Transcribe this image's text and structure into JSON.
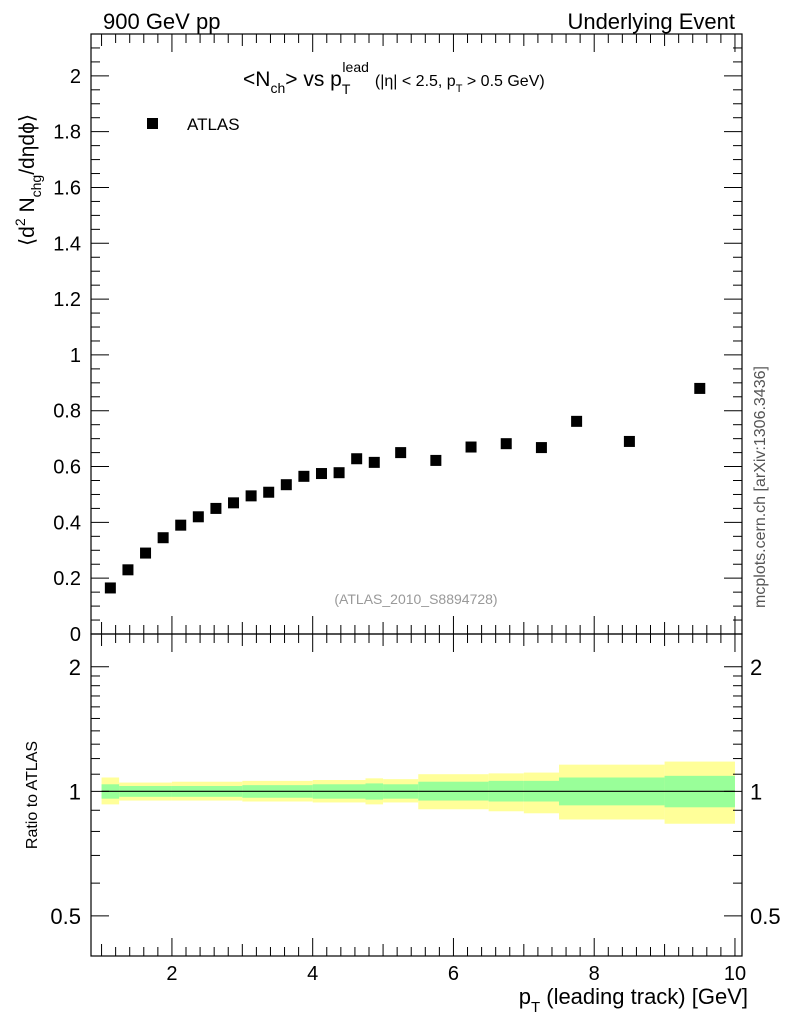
{
  "header": {
    "left": "900 GeV pp",
    "right": "Underlying Event"
  },
  "side_label": "mcplots.cern.ch [arXiv:1306.3436]",
  "colors": {
    "band_outer": "#ffff99",
    "band_inner": "#99ff99",
    "marker": "#000000",
    "analysis_label": "#999999"
  },
  "chart_data": {
    "type": "scatter",
    "title": {
      "obs_open": "<N",
      "obs_sub": "ch",
      "obs_close": "> vs p",
      "pt_sub": "T",
      "pt_sup": "lead",
      "cut_open": "(|η| < 2.5, p",
      "cut_sub": "T",
      "cut_close": " > 0.5 GeV)"
    },
    "xlabel": {
      "main": "p",
      "sub": "T",
      "rest": " (leading track) [GeV]"
    },
    "ylabel": {
      "open": "⟨d",
      "sup": "2",
      "mid": " N",
      "sub": "chg",
      "close": "/dηdϕ⟩"
    },
    "analysis_label": "(ATLAS_2010_S8894728)",
    "xlim": [
      0.85,
      10.1
    ],
    "ylim": [
      0,
      2.15
    ],
    "xticks": [
      2,
      4,
      6,
      8,
      10
    ],
    "yticks": [
      0,
      0.2,
      0.4,
      0.6,
      0.8,
      1,
      1.2,
      1.4,
      1.6,
      1.8,
      2
    ],
    "ytick_labels": [
      "0",
      "0.2",
      "0.4",
      "0.6",
      "0.8",
      "1",
      "1.2",
      "1.4",
      "1.6",
      "1.8",
      "2"
    ],
    "series": [
      {
        "name": "ATLAS",
        "marker": "square",
        "x": [
          1.125,
          1.375,
          1.625,
          1.875,
          2.125,
          2.375,
          2.625,
          2.875,
          3.125,
          3.375,
          3.625,
          3.875,
          4.125,
          4.375,
          4.625,
          4.875,
          5.25,
          5.75,
          6.25,
          6.75,
          7.25,
          7.75,
          8.5,
          9.5
        ],
        "y": [
          0.165,
          0.23,
          0.29,
          0.345,
          0.39,
          0.42,
          0.45,
          0.47,
          0.495,
          0.508,
          0.535,
          0.565,
          0.575,
          0.578,
          0.628,
          0.615,
          0.65,
          0.622,
          0.67,
          0.682,
          0.668,
          0.762,
          0.69,
          0.88
        ]
      }
    ],
    "ratio": {
      "ylabel": "Ratio to ATLAS",
      "ylim": [
        0.4,
        2.4
      ],
      "scale": "log",
      "yticks_labeled": [
        0.5,
        1,
        2
      ],
      "ytick_labels": [
        "0.5",
        "1",
        "2"
      ],
      "bins": [
        {
          "lo": 1.0,
          "hi": 1.25,
          "inner": [
            0.96,
            1.04
          ],
          "outer": [
            0.93,
            1.08
          ]
        },
        {
          "lo": 1.25,
          "hi": 2.0,
          "inner": [
            0.97,
            1.03
          ],
          "outer": [
            0.95,
            1.05
          ]
        },
        {
          "lo": 2.0,
          "hi": 3.0,
          "inner": [
            0.97,
            1.03
          ],
          "outer": [
            0.95,
            1.055
          ]
        },
        {
          "lo": 3.0,
          "hi": 4.0,
          "inner": [
            0.965,
            1.035
          ],
          "outer": [
            0.945,
            1.06
          ]
        },
        {
          "lo": 4.0,
          "hi": 4.75,
          "inner": [
            0.96,
            1.04
          ],
          "outer": [
            0.94,
            1.065
          ]
        },
        {
          "lo": 4.75,
          "hi": 5.0,
          "inner": [
            0.955,
            1.045
          ],
          "outer": [
            0.93,
            1.075
          ]
        },
        {
          "lo": 5.0,
          "hi": 5.5,
          "inner": [
            0.96,
            1.04
          ],
          "outer": [
            0.94,
            1.07
          ]
        },
        {
          "lo": 5.5,
          "hi": 6.5,
          "inner": [
            0.95,
            1.055
          ],
          "outer": [
            0.905,
            1.1
          ]
        },
        {
          "lo": 6.5,
          "hi": 7.0,
          "inner": [
            0.945,
            1.06
          ],
          "outer": [
            0.895,
            1.105
          ]
        },
        {
          "lo": 7.0,
          "hi": 7.5,
          "inner": [
            0.945,
            1.06
          ],
          "outer": [
            0.885,
            1.11
          ]
        },
        {
          "lo": 7.5,
          "hi": 9.0,
          "inner": [
            0.925,
            1.08
          ],
          "outer": [
            0.855,
            1.16
          ]
        },
        {
          "lo": 9.0,
          "hi": 10.0,
          "inner": [
            0.915,
            1.09
          ],
          "outer": [
            0.835,
            1.18
          ]
        }
      ]
    }
  }
}
